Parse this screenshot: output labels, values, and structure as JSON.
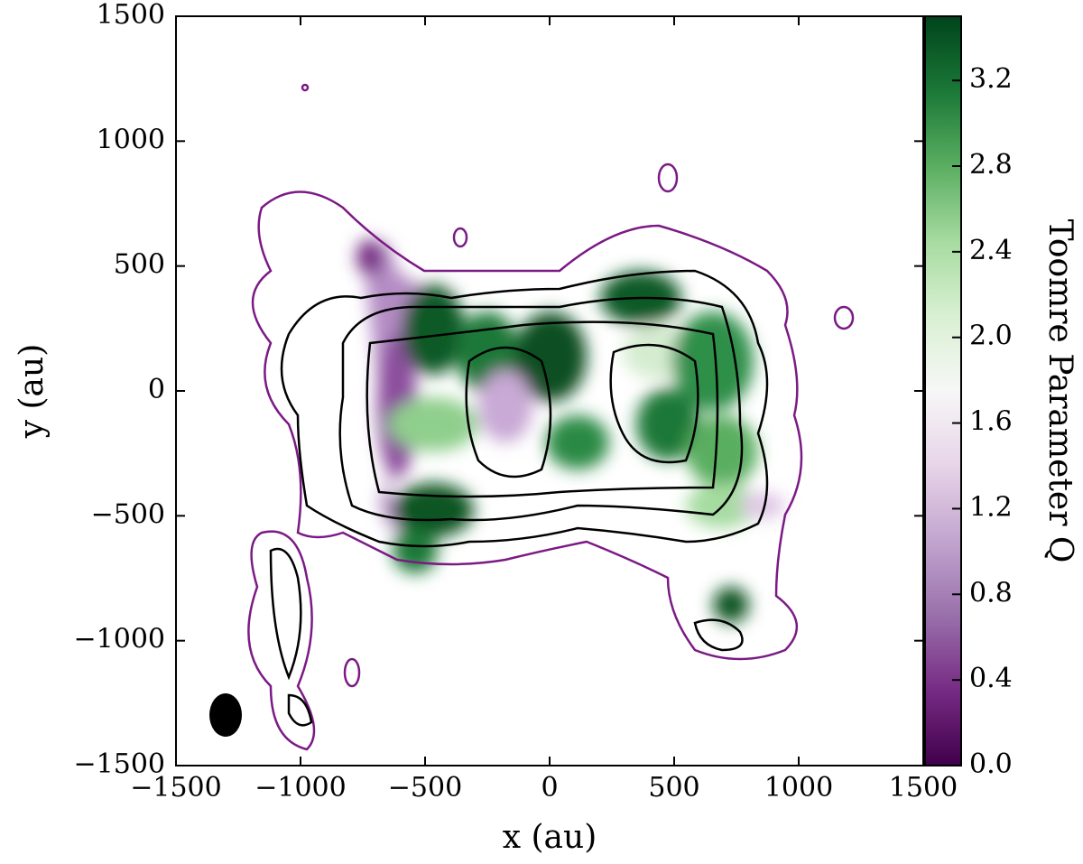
{
  "chart_data": {
    "type": "colormap",
    "xlabel": "x (au)",
    "ylabel": "y (au)",
    "colorbar_label": "Toomre Parameter Q",
    "xlim": [
      -1500,
      1500
    ],
    "ylim": [
      -1500,
      1500
    ],
    "xticks": [
      {
        "value": -1500,
        "label": "−1500"
      },
      {
        "value": -1000,
        "label": "−1000"
      },
      {
        "value": -500,
        "label": "−500"
      },
      0,
      500,
      1000,
      1500
    ],
    "yticks": [
      {
        "value": -1500,
        "label": "−1500"
      },
      {
        "value": -1000,
        "label": "−1000"
      },
      {
        "value": -500,
        "label": "−500"
      },
      0,
      500,
      1000,
      1500
    ],
    "clim": [
      0,
      3.5
    ],
    "cticks": [
      {
        "value": 0,
        "label": "0.0"
      },
      0.4,
      0.8,
      1.2,
      1.6,
      {
        "value": 2,
        "label": "2.0"
      },
      2.4,
      2.8,
      3.2
    ],
    "colormap": [
      "#40004b",
      "#762a83",
      "#9970ab",
      "#c2a5cf",
      "#e7d4e8",
      "#f7f7f7",
      "#d9f0d3",
      "#a6dba0",
      "#5aae61",
      "#1b7837",
      "#00441b"
    ]
  }
}
